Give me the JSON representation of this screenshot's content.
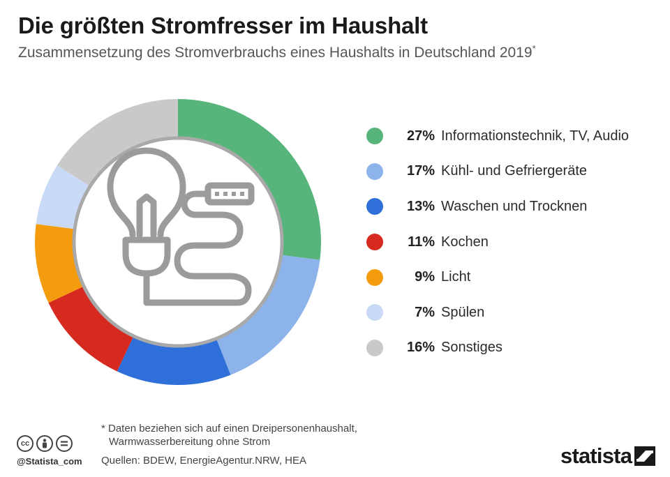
{
  "header": {
    "title": "Die größten Stromfresser im Haushalt",
    "subtitle": "Zusammensetzung des Stromverbrauchs eines Haushalts in Deutschland 2019",
    "subtitle_mark": "*"
  },
  "chart_data": {
    "type": "pie",
    "variant": "donut",
    "center_icon": "lightbulb-plug-power-strip-icon",
    "legend_placement": "right",
    "series": [
      {
        "label": "Informationstechnik, TV, Audio",
        "value": 27,
        "value_label": "27%",
        "color": "#57b47a"
      },
      {
        "label": "Kühl- und Gefriergeräte",
        "value": 17,
        "value_label": "17%",
        "color": "#8cb4ea"
      },
      {
        "label": "Waschen und Trocknen",
        "value": 13,
        "value_label": "13%",
        "color": "#2f6fd9"
      },
      {
        "label": "Kochen",
        "value": 11,
        "value_label": "11%",
        "color": "#d6291f"
      },
      {
        "label": "Licht",
        "value": 9,
        "value_label": "9%",
        "color": "#f59b0e"
      },
      {
        "label": "Spülen",
        "value": 7,
        "value_label": "7%",
        "color": "#c8daf6"
      },
      {
        "label": "Sonstiges",
        "value": 16,
        "value_label": "16%",
        "color": "#c9c9c9"
      }
    ]
  },
  "footer": {
    "footnote_line1": "* Daten beziehen sich auf einen Dreipersonenhaushalt,",
    "footnote_line2": "Warmwasserbereitung ohne Strom",
    "sources": "Quellen: BDEW, EnergieAgentur.NRW, HEA",
    "handle": "@Statista_com",
    "brand": "statista",
    "license_icons": [
      "cc-icon",
      "by-icon",
      "nd-icon"
    ]
  }
}
